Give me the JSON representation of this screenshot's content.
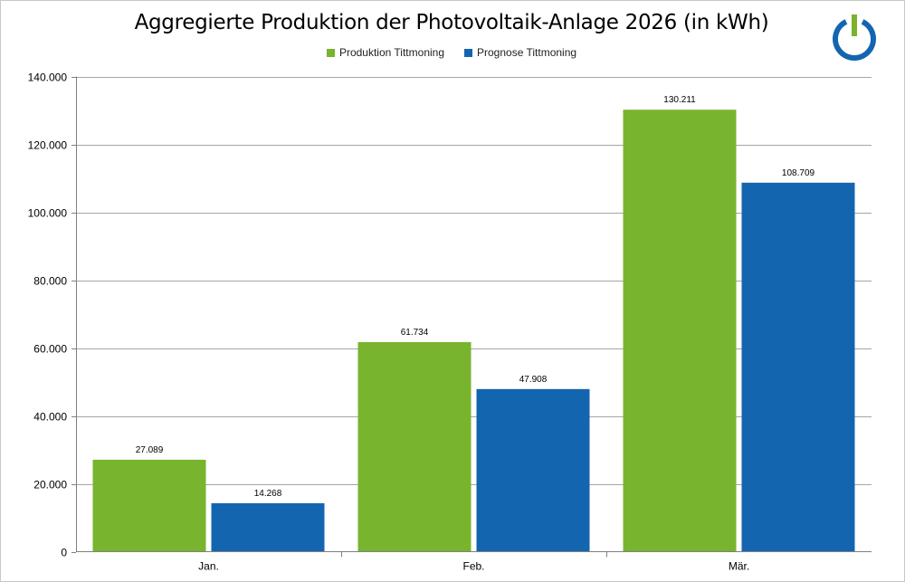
{
  "chart_data": {
    "type": "bar",
    "title": "Aggregierte Produktion der Photovoltaik-Anlage 2026 (in kWh)",
    "categories": [
      "Jan.",
      "Feb.",
      "Mär."
    ],
    "series": [
      {
        "name": "Produktion Tittmoning",
        "values": [
          27089,
          61734,
          130211
        ],
        "labels": [
          "27.089",
          "61.734",
          "130.211"
        ],
        "color": "#78b42e"
      },
      {
        "name": "Prognose Tittmoning",
        "values": [
          14268,
          47908,
          108709
        ],
        "labels": [
          "14.268",
          "47.908",
          "108.709"
        ],
        "color": "#1465b0"
      }
    ],
    "ylim": [
      0,
      140000
    ],
    "yticks": [
      0,
      20000,
      40000,
      60000,
      80000,
      100000,
      120000,
      140000
    ],
    "ytick_labels": [
      "0",
      "20.000",
      "40.000",
      "60.000",
      "80.000",
      "100.000",
      "120.000",
      "140.000"
    ],
    "grid": true,
    "legend_position": "top-center",
    "xlabel": "",
    "ylabel": ""
  },
  "logo": {
    "name": "power-icon",
    "ring_color": "#1465b0",
    "bar_color": "#78b42e"
  }
}
